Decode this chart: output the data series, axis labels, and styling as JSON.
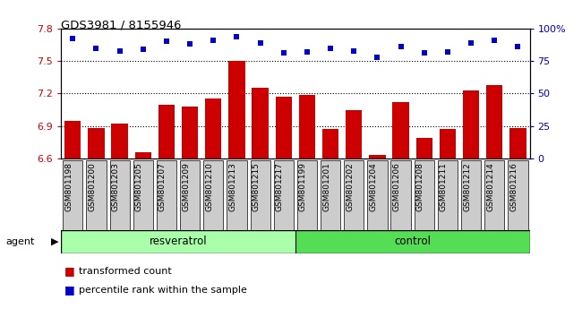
{
  "title": "GDS3981 / 8155946",
  "samples": [
    "GSM801198",
    "GSM801200",
    "GSM801203",
    "GSM801205",
    "GSM801207",
    "GSM801209",
    "GSM801210",
    "GSM801213",
    "GSM801215",
    "GSM801217",
    "GSM801199",
    "GSM801201",
    "GSM801202",
    "GSM801204",
    "GSM801206",
    "GSM801208",
    "GSM801211",
    "GSM801212",
    "GSM801214",
    "GSM801216"
  ],
  "bar_values": [
    6.95,
    6.88,
    6.92,
    6.66,
    7.1,
    7.08,
    7.15,
    7.5,
    7.25,
    7.17,
    7.19,
    6.87,
    7.05,
    6.63,
    7.12,
    6.79,
    6.87,
    7.23,
    7.28,
    6.88
  ],
  "percentile_values": [
    92,
    85,
    83,
    84,
    90,
    88,
    91,
    94,
    89,
    81,
    82,
    85,
    83,
    78,
    86,
    81,
    82,
    89,
    91,
    86
  ],
  "bar_color": "#cc0000",
  "percentile_color": "#0000cc",
  "ylim_left": [
    6.6,
    7.8
  ],
  "ylim_right": [
    0,
    100
  ],
  "yticks_left": [
    6.6,
    6.9,
    7.2,
    7.5,
    7.8
  ],
  "yticks_right": [
    0,
    25,
    50,
    75,
    100
  ],
  "ytick_labels_right": [
    "0",
    "25",
    "50",
    "75",
    "100%"
  ],
  "group1_label": "resveratrol",
  "group2_label": "control",
  "group1_count": 10,
  "group2_count": 10,
  "agent_label": "agent",
  "legend_bar_label": "transformed count",
  "legend_pct_label": "percentile rank within the sample",
  "bg_color": "#cccccc",
  "group1_color": "#aaffaa",
  "group2_color": "#55dd55",
  "dotted_gridlines": [
    6.9,
    7.2,
    7.5
  ]
}
